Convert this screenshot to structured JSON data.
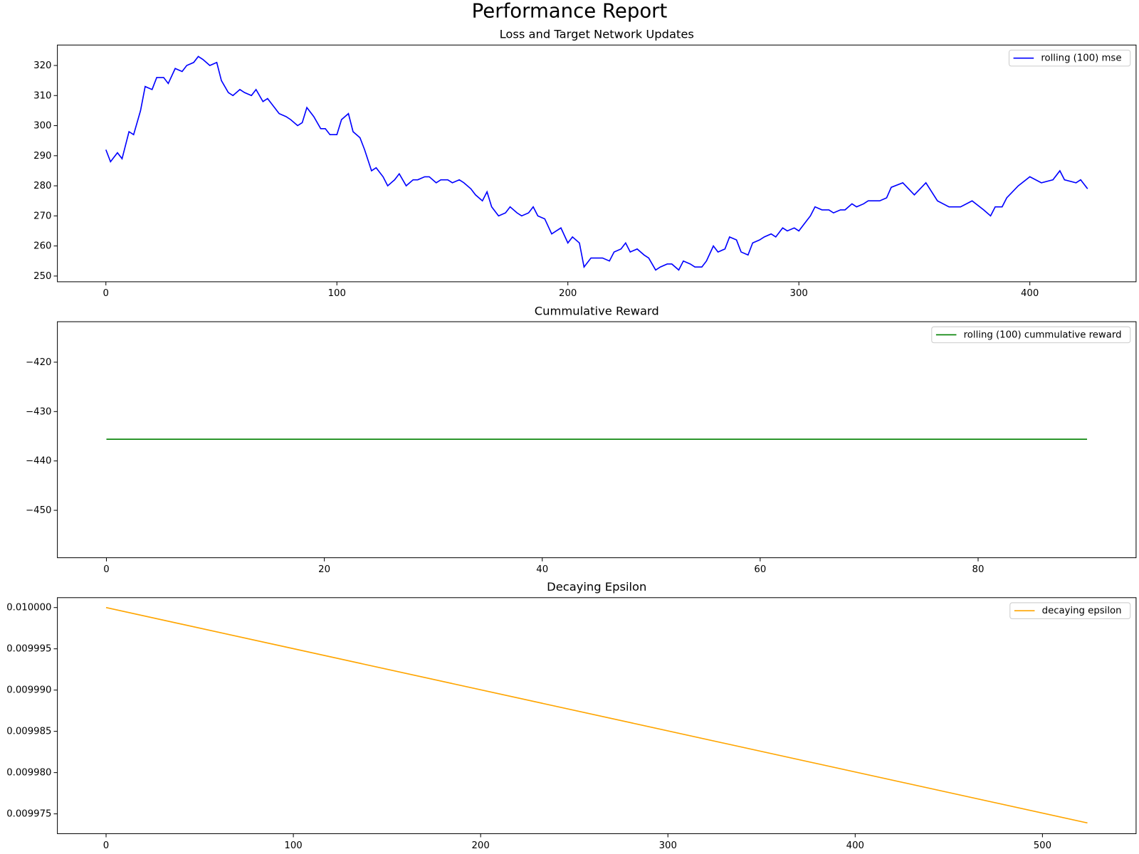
{
  "title": "Performance Report",
  "chart_data": [
    {
      "type": "line",
      "title": "Loss and Target Network Updates",
      "x": [
        0,
        2,
        5,
        7,
        10,
        12,
        15,
        17,
        20,
        22,
        25,
        27,
        30,
        33,
        35,
        38,
        40,
        42,
        45,
        48,
        50,
        53,
        55,
        58,
        60,
        63,
        65,
        68,
        70,
        73,
        75,
        78,
        80,
        83,
        85,
        87,
        90,
        93,
        95,
        97,
        100,
        102,
        105,
        107,
        110,
        112,
        115,
        117,
        120,
        122,
        125,
        127,
        130,
        133,
        135,
        138,
        140,
        143,
        145,
        148,
        150,
        153,
        155,
        158,
        160,
        163,
        165,
        167,
        170,
        173,
        175,
        178,
        180,
        183,
        185,
        187,
        190,
        193,
        195,
        197,
        200,
        202,
        205,
        207,
        210,
        213,
        215,
        218,
        220,
        223,
        225,
        227,
        230,
        233,
        235,
        238,
        240,
        243,
        245,
        248,
        250,
        253,
        255,
        258,
        260,
        263,
        265,
        268,
        270,
        273,
        275,
        278,
        280,
        283,
        285,
        288,
        290,
        293,
        295,
        298,
        300,
        303,
        305,
        307,
        310,
        313,
        315,
        318,
        320,
        323,
        325,
        328,
        330,
        333,
        335,
        338,
        340,
        345,
        350,
        355,
        360,
        365,
        370,
        375,
        380,
        383,
        385,
        388,
        390,
        395,
        400,
        405,
        410,
        413,
        415,
        420,
        422,
        425
      ],
      "series": [
        {
          "name": "rolling (100) mse",
          "color": "#0000ff",
          "values": [
            292,
            288,
            291,
            289,
            298,
            297,
            305,
            313,
            312,
            316,
            316,
            314,
            319,
            318,
            320,
            321,
            323,
            322,
            320,
            321,
            315,
            311,
            310,
            312,
            311,
            310,
            312,
            308,
            309,
            306,
            304,
            303,
            302,
            300,
            301,
            306,
            303,
            299,
            299,
            297,
            297,
            302,
            304,
            298,
            296,
            292,
            285,
            286,
            283,
            280,
            282,
            284,
            280,
            282,
            282,
            283,
            283,
            281,
            282,
            282,
            281,
            282,
            281,
            279,
            277,
            275,
            278,
            273,
            270,
            271,
            273,
            271,
            270,
            271,
            273,
            270,
            269,
            264,
            265,
            266,
            261,
            263,
            261,
            253,
            256,
            256,
            256,
            255,
            258,
            259,
            261,
            258,
            259,
            257,
            256,
            252,
            253,
            254,
            254,
            252,
            255,
            254,
            253,
            253,
            255,
            260,
            258,
            259,
            263,
            262,
            258,
            257,
            261,
            262,
            263,
            264,
            263,
            266,
            265,
            266,
            265,
            268,
            270,
            273,
            272,
            272,
            271,
            272,
            272,
            274,
            273,
            274,
            275,
            275,
            275,
            276,
            279.5,
            281,
            277,
            281,
            275,
            273,
            273,
            275,
            272,
            270,
            273,
            273,
            276,
            280,
            283,
            281,
            282,
            285,
            282,
            281,
            282,
            279
          ]
        }
      ],
      "xlim": [
        -21,
        446
      ],
      "ylim": [
        248.1,
        326.8
      ],
      "xticks": [
        0,
        100,
        200,
        300,
        400
      ],
      "yticks": [
        250,
        260,
        270,
        280,
        290,
        300,
        310,
        320
      ],
      "legend": "upper right"
    },
    {
      "type": "line",
      "title": "Cummulative Reward",
      "x": [
        0,
        90
      ],
      "series": [
        {
          "name": "rolling (100) cummulative reward",
          "color": "#008000",
          "values": [
            -435.6,
            -435.6
          ]
        }
      ],
      "xlim": [
        -4.5,
        94.5
      ],
      "ylim": [
        -459.6,
        -411.8
      ],
      "xticks": [
        0,
        20,
        40,
        60,
        80
      ],
      "yticks": [
        {
          "value": -450,
          "label": "−450"
        },
        {
          "value": -440,
          "label": "−440"
        },
        {
          "value": -430,
          "label": "−430"
        },
        {
          "value": -420,
          "label": "−420"
        }
      ],
      "legend": "upper right"
    },
    {
      "type": "line",
      "title": "Decaying Epsilon",
      "x": [
        0,
        524
      ],
      "series": [
        {
          "name": "decaying epsilon",
          "color": "#ffa500",
          "values": [
            0.01,
            0.0099739
          ]
        }
      ],
      "xlim": [
        -26,
        550
      ],
      "ylim": [
        0.0099726,
        0.0100012
      ],
      "xticks": [
        0,
        100,
        200,
        300,
        400,
        500
      ],
      "yticks": [
        {
          "value": 0.009975,
          "label": "0.009975"
        },
        {
          "value": 0.00998,
          "label": "0.009980"
        },
        {
          "value": 0.009985,
          "label": "0.009985"
        },
        {
          "value": 0.00999,
          "label": "0.009990"
        },
        {
          "value": 0.009995,
          "label": "0.009995"
        },
        {
          "value": 0.01,
          "label": "0.010000"
        }
      ],
      "legend": "upper right"
    }
  ]
}
